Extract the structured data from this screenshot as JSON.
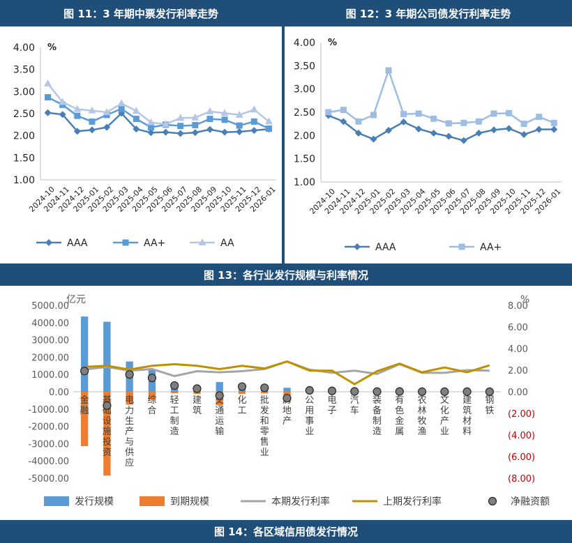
{
  "chart_data": [
    {
      "type": "line",
      "title": "图 11：3 年期中票发行利率走势",
      "ylabel": "%",
      "ylim": [
        1.0,
        4.0
      ],
      "yticks": [
        "1.00",
        "1.50",
        "2.00",
        "2.50",
        "3.00",
        "3.50",
        "4.00"
      ],
      "categories": [
        "2024-10",
        "2024-11",
        "2024-12",
        "2025-01",
        "2025-02",
        "2025-03",
        "2025-04",
        "2025-05",
        "2025-06",
        "2025-07",
        "2025-08",
        "2025-09",
        "2025-10",
        "2025-11",
        "2025-12",
        "2026-01"
      ],
      "series": [
        {
          "name": "AAA",
          "color": "#4a7fb5",
          "marker": "diamond",
          "values": [
            2.52,
            2.48,
            2.1,
            2.13,
            2.19,
            2.51,
            2.15,
            2.07,
            2.08,
            2.05,
            2.07,
            2.14,
            2.08,
            2.09,
            2.12,
            2.15
          ]
        },
        {
          "name": "AA+",
          "color": "#5b9bd5",
          "marker": "square",
          "values": [
            2.87,
            2.7,
            2.45,
            2.32,
            2.47,
            2.61,
            2.38,
            2.19,
            2.25,
            2.22,
            2.24,
            2.38,
            2.36,
            2.23,
            2.32,
            2.16
          ]
        },
        {
          "name": "AA",
          "color": "#b4c7e7",
          "marker": "triangle",
          "values": [
            3.18,
            2.76,
            2.6,
            2.57,
            2.53,
            2.73,
            2.56,
            2.3,
            2.26,
            2.4,
            2.41,
            2.55,
            2.51,
            2.47,
            2.59,
            2.32
          ]
        }
      ],
      "legend": "bottom"
    },
    {
      "type": "line",
      "title": "图 12：3 年期公司债发行利率走势",
      "ylabel": "%",
      "ylim": [
        1.0,
        4.0
      ],
      "yticks": [
        "1.00",
        "1.50",
        "2.00",
        "2.50",
        "3.00",
        "3.50",
        "4.00"
      ],
      "categories": [
        "2024-10",
        "2024-11",
        "2024-12",
        "2025-01",
        "2025-02",
        "2025-03",
        "2025-04",
        "2025-05",
        "2025-06",
        "2025-07",
        "2025-08",
        "2025-09",
        "2025-10",
        "2025-11",
        "2025-12",
        "2026-01"
      ],
      "series": [
        {
          "name": "AAA",
          "color": "#4a7fb5",
          "marker": "diamond",
          "values": [
            2.43,
            2.3,
            2.05,
            1.92,
            2.11,
            2.29,
            2.14,
            2.05,
            1.98,
            1.89,
            2.05,
            2.12,
            2.15,
            2.02,
            2.13,
            2.13
          ]
        },
        {
          "name": "AA+",
          "color": "#9dbde3",
          "marker": "square",
          "values": [
            2.5,
            2.55,
            2.3,
            2.44,
            3.4,
            2.46,
            2.47,
            2.36,
            2.26,
            2.27,
            2.3,
            2.47,
            2.48,
            2.25,
            2.4,
            2.27
          ]
        }
      ],
      "legend": "bottom"
    },
    {
      "type": "bar",
      "title": "图 13：各行业发行规模与利率情况",
      "ylabel_left": "亿元",
      "ylabel_right": "%",
      "ylim_left": [
        -5000,
        5000
      ],
      "ylim_right": [
        -8,
        8
      ],
      "yticks_left": [
        "5000.00",
        "4000.00",
        "3000.00",
        "2000.00",
        "1000.00",
        "0.00",
        "-1000.00",
        "-2000.00",
        "-3000.00",
        "-4000.00",
        "-5000.00"
      ],
      "yticks_right": [
        "8.00",
        "6.00",
        "4.00",
        "2.00",
        "0.00",
        "(2.00)",
        "(4.00)",
        "(6.00)",
        "(8.00)"
      ],
      "categories": [
        "金融",
        "基础设施投资",
        "电力生产与供应",
        "综合",
        "轻工制造",
        "建筑",
        "交通运输",
        "化工",
        "批发和零售业",
        "房地产",
        "公用事业",
        "电子",
        "汽车",
        "装备制造",
        "有色金属",
        "农林牧渔",
        "文化产业",
        "建筑材料",
        "钢铁"
      ],
      "series": [
        {
          "name": "发行规模",
          "color": "#5b9bd5",
          "kind": "bar",
          "values": [
            4350,
            4050,
            1750,
            1250,
            450,
            310,
            560,
            420,
            330,
            230,
            110,
            70,
            40,
            30,
            25,
            20,
            15,
            10,
            5
          ]
        },
        {
          "name": "到期规模",
          "color": "#ed7d31",
          "kind": "bar",
          "values": [
            -3150,
            -4850,
            -750,
            -450,
            -90,
            -130,
            -780,
            -120,
            -100,
            -600,
            -30,
            -20,
            -20,
            -20,
            -10,
            -15,
            -10,
            -5,
            -5
          ]
        },
        {
          "name": "本期发行利率",
          "color": "#a5a5a5",
          "kind": "line",
          "values": [
            2.05,
            2.3,
            1.95,
            2.1,
            1.45,
            1.9,
            1.8,
            1.9,
            2.1,
            2.8,
            2.05,
            1.75,
            1.95,
            1.65,
            2.55,
            1.75,
            1.75,
            2.0,
            1.95
          ]
        },
        {
          "name": "上期发行利率",
          "color": "#bf9000",
          "kind": "line",
          "values": [
            2.3,
            2.4,
            2.05,
            2.4,
            2.55,
            2.4,
            2.1,
            2.4,
            2.15,
            2.8,
            1.95,
            1.95,
            0.7,
            1.9,
            2.6,
            1.8,
            2.25,
            1.8,
            2.45
          ]
        },
        {
          "name": "净融资额",
          "color": "#7f7f7f",
          "kind": "dot",
          "values": [
            1200,
            -800,
            1000,
            800,
            360,
            180,
            -220,
            300,
            230,
            -370,
            80,
            50,
            20,
            10,
            15,
            5,
            5,
            5,
            0
          ]
        }
      ],
      "legend": "bottom"
    },
    {
      "title": "图 14：各区域信用债发行情况"
    }
  ]
}
